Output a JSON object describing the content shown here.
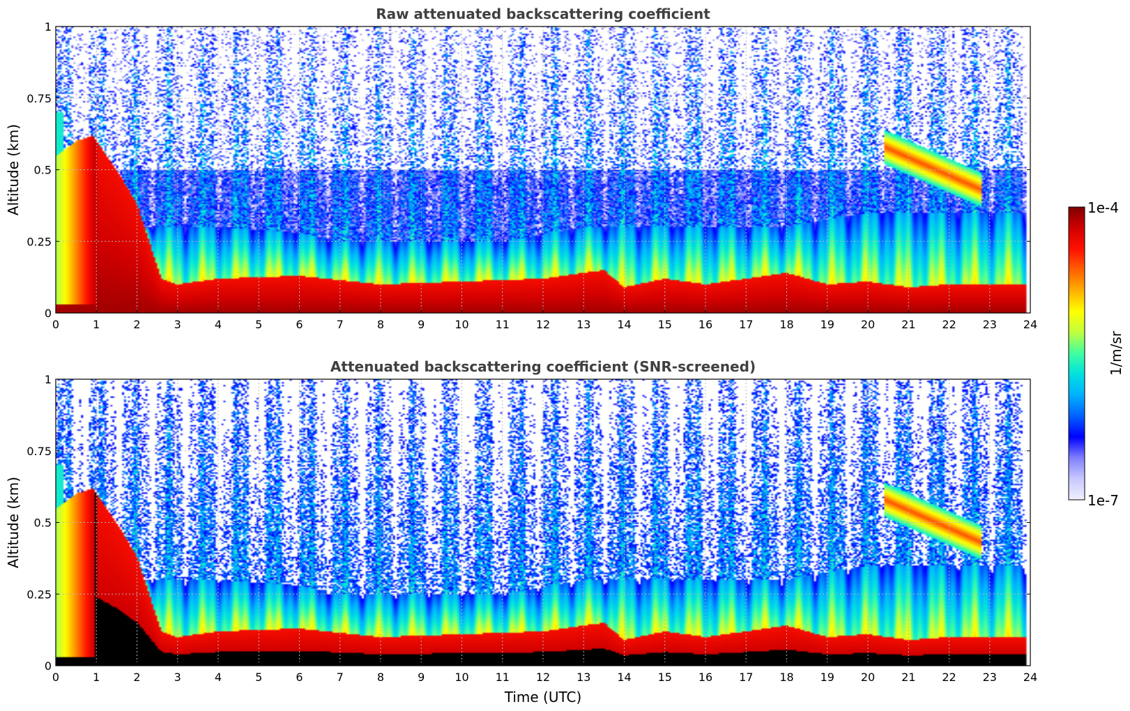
{
  "chart_data": [
    {
      "type": "heatmap",
      "title": "Raw attenuated backscattering coefficient",
      "xlabel": "",
      "ylabel": "Altitude (km)",
      "xlim": [
        0,
        24
      ],
      "ylim": [
        0,
        1
      ],
      "xticks": [
        "0",
        "1",
        "2",
        "3",
        "4",
        "5",
        "6",
        "7",
        "8",
        "9",
        "10",
        "11",
        "12",
        "13",
        "14",
        "15",
        "16",
        "17",
        "18",
        "19",
        "20",
        "21",
        "22",
        "23",
        "24"
      ],
      "yticks": [
        "0",
        "0.25",
        "0.5",
        "0.75",
        "1"
      ],
      "grid": true,
      "screened": false,
      "features": {
        "surface_layer_top_km": [
          {
            "t": 0,
            "z": 0.55
          },
          {
            "t": 0.5,
            "z": 0.6
          },
          {
            "t": 0.9,
            "z": 0.62
          },
          {
            "t": 1.5,
            "z": 0.5
          },
          {
            "t": 2.0,
            "z": 0.38
          },
          {
            "t": 2.3,
            "z": 0.25
          },
          {
            "t": 2.6,
            "z": 0.12
          },
          {
            "t": 3.0,
            "z": 0.1
          },
          {
            "t": 4,
            "z": 0.12
          },
          {
            "t": 6,
            "z": 0.13
          },
          {
            "t": 8,
            "z": 0.1
          },
          {
            "t": 10,
            "z": 0.11
          },
          {
            "t": 12,
            "z": 0.12
          },
          {
            "t": 13.5,
            "z": 0.15
          },
          {
            "t": 14,
            "z": 0.09
          },
          {
            "t": 15,
            "z": 0.12
          },
          {
            "t": 16,
            "z": 0.1
          },
          {
            "t": 17,
            "z": 0.12
          },
          {
            "t": 18,
            "z": 0.14
          },
          {
            "t": 19,
            "z": 0.1
          },
          {
            "t": 20,
            "z": 0.11
          },
          {
            "t": 21,
            "z": 0.09
          },
          {
            "t": 22,
            "z": 0.1
          },
          {
            "t": 23,
            "z": 0.1
          },
          {
            "t": 24,
            "z": 0.1
          }
        ],
        "aerosol_layer_top_km": [
          {
            "t": 3,
            "z": 0.3
          },
          {
            "t": 4,
            "z": 0.3
          },
          {
            "t": 6,
            "z": 0.28
          },
          {
            "t": 7,
            "z": 0.25
          },
          {
            "t": 9,
            "z": 0.25
          },
          {
            "t": 11,
            "z": 0.25
          },
          {
            "t": 13,
            "z": 0.3
          },
          {
            "t": 14,
            "z": 0.3
          },
          {
            "t": 16,
            "z": 0.3
          },
          {
            "t": 18,
            "z": 0.3
          },
          {
            "t": 20,
            "z": 0.35
          },
          {
            "t": 22,
            "z": 0.35
          },
          {
            "t": 24,
            "z": 0.35
          }
        ],
        "elevated_layer": {
          "t_start": 20.4,
          "t_end": 22.8,
          "z_start": 0.58,
          "z_end": 0.43
        }
      }
    },
    {
      "type": "heatmap",
      "title": "Attenuated backscattering coefficient (SNR-screened)",
      "xlabel": "Time (UTC)",
      "ylabel": "Altitude (km)",
      "xlim": [
        0,
        24
      ],
      "ylim": [
        0,
        1
      ],
      "xticks": [
        "0",
        "1",
        "2",
        "3",
        "4",
        "5",
        "6",
        "7",
        "8",
        "9",
        "10",
        "11",
        "12",
        "13",
        "14",
        "15",
        "16",
        "17",
        "18",
        "19",
        "20",
        "21",
        "22",
        "23",
        "24"
      ],
      "yticks": [
        "0",
        "0.25",
        "0.5",
        "0.75",
        "1"
      ],
      "grid": true,
      "screened": true
    }
  ],
  "colorbar": {
    "label": "1/m/sr",
    "max_label": "1e-4",
    "min_label": "1e-7",
    "scale": "log",
    "colors": [
      "#f0f0ff",
      "#c8c8ff",
      "#8080ff",
      "#0000ff",
      "#0060ff",
      "#00b0ff",
      "#00e0e0",
      "#40ffa0",
      "#c0ff40",
      "#ffff00",
      "#ffb000",
      "#ff6000",
      "#ff1000",
      "#d00000",
      "#800000"
    ]
  },
  "colors": {
    "saturated": "#000000",
    "title_text": "#404040",
    "grid": "#b8b8b8"
  }
}
